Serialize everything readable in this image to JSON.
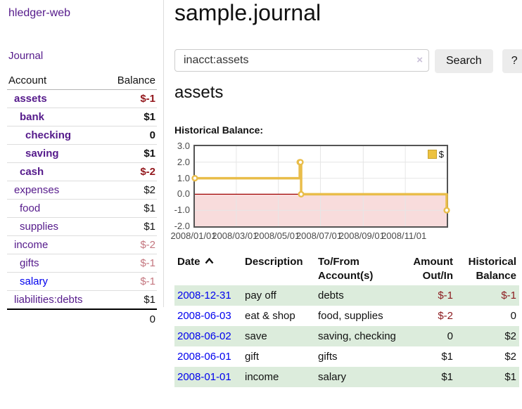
{
  "app": {
    "brand": "hledger-web"
  },
  "nav": {
    "journal": "Journal"
  },
  "sidebar": {
    "table_header": {
      "account": "Account",
      "balance": "Balance"
    },
    "accounts": [
      {
        "name": "assets",
        "indent": 1,
        "balance": "$-1",
        "bold": true,
        "balance_style": "negative"
      },
      {
        "name": "bank",
        "indent": 2,
        "balance": "$1",
        "bold": true,
        "balance_style": "positive"
      },
      {
        "name": "checking",
        "indent": 3,
        "balance": "0",
        "bold": true,
        "balance_style": "positive"
      },
      {
        "name": "saving",
        "indent": 3,
        "balance": "$1",
        "bold": true,
        "balance_style": "positive"
      },
      {
        "name": "cash",
        "indent": 2,
        "balance": "$-2",
        "bold": true,
        "balance_style": "negative"
      },
      {
        "name": "expenses",
        "indent": 1,
        "balance": "$2",
        "bold": false,
        "balance_style": "positive"
      },
      {
        "name": "food",
        "indent": 2,
        "balance": "$1",
        "bold": false,
        "balance_style": "positive"
      },
      {
        "name": "supplies",
        "indent": 2,
        "balance": "$1",
        "bold": false,
        "balance_style": "positive"
      },
      {
        "name": "income",
        "indent": 1,
        "balance": "$-2",
        "bold": false,
        "balance_style": "negative-dim"
      },
      {
        "name": "gifts",
        "indent": 2,
        "balance": "$-1",
        "bold": false,
        "balance_style": "negative-dim"
      },
      {
        "name": "salary",
        "indent": 2,
        "balance": "$-1",
        "bold": false,
        "balance_style": "negative-dim",
        "link_color": "blue"
      },
      {
        "name": "liabilities:debts",
        "indent": 1,
        "balance": "$1",
        "bold": false,
        "balance_style": "positive"
      }
    ],
    "total": "0"
  },
  "header": {
    "title": "sample.journal"
  },
  "search": {
    "value": "inacct:assets",
    "clear_icon": "×",
    "search_button": "Search",
    "help_button": "?"
  },
  "account_page": {
    "title": "assets",
    "chart_heading": "Historical Balance:"
  },
  "chart_data": {
    "type": "line",
    "step": true,
    "title": "Historical Balance",
    "series": [
      {
        "name": "$",
        "color": "#e9bd4a",
        "points": [
          [
            "2008-01-01",
            1
          ],
          [
            "2008-06-01",
            2
          ],
          [
            "2008-06-02",
            2
          ],
          [
            "2008-06-03",
            0
          ],
          [
            "2008-12-31",
            -1
          ]
        ]
      }
    ],
    "x_range": [
      "2008-01-01",
      "2008-12-31"
    ],
    "x_ticks": [
      "2008/01/01",
      "2008/03/01",
      "2008/05/01",
      "2008/07/01",
      "2008/09/01",
      "2008/11/01"
    ],
    "y_ticks": [
      "3.0",
      "2.0",
      "1.0",
      "0.0",
      "-1.0",
      "-2.0"
    ],
    "ylim": [
      -2,
      3
    ],
    "grid": true,
    "legend_position": "top-right",
    "legend_entries": [
      "$"
    ],
    "negative_region_color": "#f8dcdc",
    "zero_line_color": "#a00000",
    "grid_color": "#e6e6e6",
    "border_color": "#545454"
  },
  "register": {
    "columns": [
      {
        "lines": [
          "Date"
        ],
        "align": "left",
        "sortable": true
      },
      {
        "lines": [
          "Description"
        ],
        "align": "left"
      },
      {
        "lines": [
          "To/From",
          "Account(s)"
        ],
        "align": "left"
      },
      {
        "lines": [
          "Amount",
          "Out/In"
        ],
        "align": "right"
      },
      {
        "lines": [
          "Historical",
          "Balance"
        ],
        "align": "right"
      }
    ],
    "rows": [
      {
        "date": "2008-12-31",
        "description": "pay off",
        "accounts": "debts",
        "amount": "$-1",
        "amount_negative": true,
        "balance": "$-1",
        "balance_negative": true
      },
      {
        "date": "2008-06-03",
        "description": "eat & shop",
        "accounts": "food, supplies",
        "amount": "$-2",
        "amount_negative": true,
        "balance": "0",
        "balance_negative": false
      },
      {
        "date": "2008-06-02",
        "description": "save",
        "accounts": "saving, checking",
        "amount": "0",
        "amount_negative": false,
        "balance": "$2",
        "balance_negative": false
      },
      {
        "date": "2008-06-01",
        "description": "gift",
        "accounts": "gifts",
        "amount": "$1",
        "amount_negative": false,
        "balance": "$2",
        "balance_negative": false
      },
      {
        "date": "2008-01-01",
        "description": "income",
        "accounts": "salary",
        "amount": "$1",
        "amount_negative": false,
        "balance": "$1",
        "balance_negative": false
      }
    ]
  },
  "colors": {
    "link_purple": "#551a8b",
    "link_blue": "#0000ee",
    "negative_bold": "#93181d",
    "negative_dim": "#c4767f",
    "register_negative": "#8b1a1e",
    "row_stripe_green": "#dcecdc",
    "chart_line_gold": "#e9bd4a",
    "plot_border": "#545454"
  }
}
